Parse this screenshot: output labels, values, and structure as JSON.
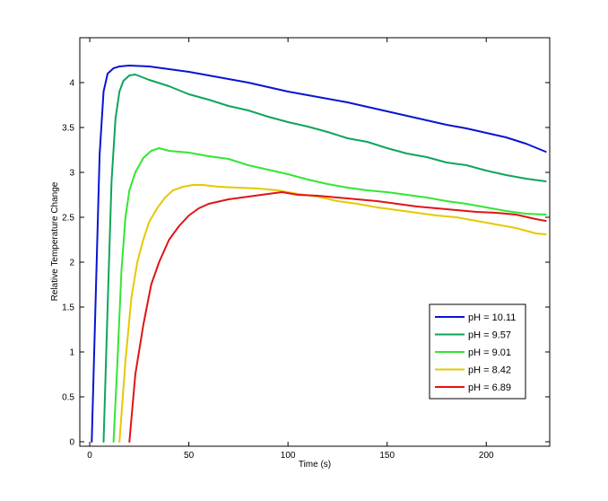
{
  "chart_data": {
    "type": "line",
    "title": "",
    "xlabel": "Time (s)",
    "ylabel": "Relative Temperature Change",
    "xlim": [
      -5,
      232
    ],
    "ylim": [
      -0.05,
      4.5
    ],
    "xticks": [
      0,
      50,
      100,
      150,
      200
    ],
    "xtick_labels": [
      "0",
      "50",
      "100",
      "150",
      "200"
    ],
    "yticks": [
      0,
      0.5,
      1,
      1.5,
      2,
      2.5,
      3,
      3.5,
      4
    ],
    "ytick_labels": [
      "0",
      "0.5",
      "1",
      "1.5",
      "2",
      "2.5",
      "3",
      "3.5",
      "4"
    ],
    "grid": false,
    "legend_position": "lower-right",
    "series": [
      {
        "name": "pH = 10.11",
        "color": "#0a14d2",
        "x": [
          1,
          3,
          5,
          7,
          9,
          12,
          15,
          20,
          30,
          40,
          50,
          60,
          70,
          80,
          90,
          100,
          110,
          120,
          130,
          140,
          150,
          160,
          170,
          180,
          190,
          200,
          210,
          220,
          230
        ],
        "y": [
          0,
          1.6,
          3.2,
          3.9,
          4.1,
          4.16,
          4.18,
          4.19,
          4.18,
          4.15,
          4.12,
          4.08,
          4.04,
          4.0,
          3.95,
          3.9,
          3.86,
          3.82,
          3.78,
          3.73,
          3.68,
          3.63,
          3.58,
          3.53,
          3.49,
          3.44,
          3.39,
          3.32,
          3.23
        ]
      },
      {
        "name": "pH = 9.57",
        "color": "#0ea55a",
        "x": [
          7,
          9,
          11,
          13,
          15,
          17,
          20,
          23,
          30,
          40,
          50,
          60,
          70,
          80,
          90,
          100,
          110,
          120,
          130,
          140,
          150,
          160,
          170,
          180,
          190,
          200,
          210,
          220,
          230
        ],
        "y": [
          0,
          1.5,
          2.9,
          3.6,
          3.9,
          4.02,
          4.08,
          4.09,
          4.03,
          3.96,
          3.87,
          3.81,
          3.74,
          3.69,
          3.62,
          3.56,
          3.51,
          3.45,
          3.38,
          3.34,
          3.27,
          3.21,
          3.17,
          3.11,
          3.08,
          3.02,
          2.97,
          2.93,
          2.9
        ]
      },
      {
        "name": "pH = 9.01",
        "color": "#33e633",
        "x": [
          12,
          14,
          16,
          18,
          20,
          23,
          27,
          31,
          35,
          40,
          50,
          60,
          70,
          80,
          90,
          100,
          110,
          120,
          130,
          140,
          150,
          160,
          170,
          180,
          190,
          200,
          210,
          220,
          230
        ],
        "y": [
          0,
          0.9,
          1.9,
          2.5,
          2.8,
          3.0,
          3.16,
          3.24,
          3.27,
          3.24,
          3.22,
          3.18,
          3.15,
          3.08,
          3.03,
          2.98,
          2.92,
          2.87,
          2.83,
          2.8,
          2.78,
          2.75,
          2.72,
          2.68,
          2.65,
          2.61,
          2.57,
          2.54,
          2.53
        ]
      },
      {
        "name": "pH = 8.42",
        "color": "#e6c800",
        "x": [
          15,
          18,
          21,
          24,
          27,
          30,
          34,
          38,
          42,
          47,
          52,
          57,
          65,
          75,
          85,
          95,
          105,
          115,
          125,
          135,
          145,
          155,
          165,
          175,
          185,
          195,
          205,
          215,
          225,
          230
        ],
        "y": [
          0,
          0.9,
          1.6,
          2.0,
          2.25,
          2.45,
          2.6,
          2.72,
          2.8,
          2.84,
          2.86,
          2.86,
          2.84,
          2.83,
          2.82,
          2.8,
          2.76,
          2.73,
          2.68,
          2.65,
          2.61,
          2.58,
          2.55,
          2.52,
          2.5,
          2.46,
          2.42,
          2.38,
          2.32,
          2.31
        ]
      },
      {
        "name": "pH = 6.89",
        "color": "#e01414",
        "x": [
          20,
          23,
          27,
          31,
          35,
          40,
          45,
          50,
          55,
          60,
          70,
          80,
          90,
          97,
          105,
          115,
          125,
          135,
          145,
          155,
          165,
          175,
          185,
          195,
          205,
          215,
          225,
          230
        ],
        "y": [
          0,
          0.75,
          1.3,
          1.75,
          2.0,
          2.25,
          2.4,
          2.52,
          2.6,
          2.65,
          2.7,
          2.73,
          2.76,
          2.78,
          2.75,
          2.74,
          2.72,
          2.7,
          2.68,
          2.65,
          2.62,
          2.6,
          2.58,
          2.56,
          2.55,
          2.53,
          2.48,
          2.46
        ]
      }
    ]
  }
}
